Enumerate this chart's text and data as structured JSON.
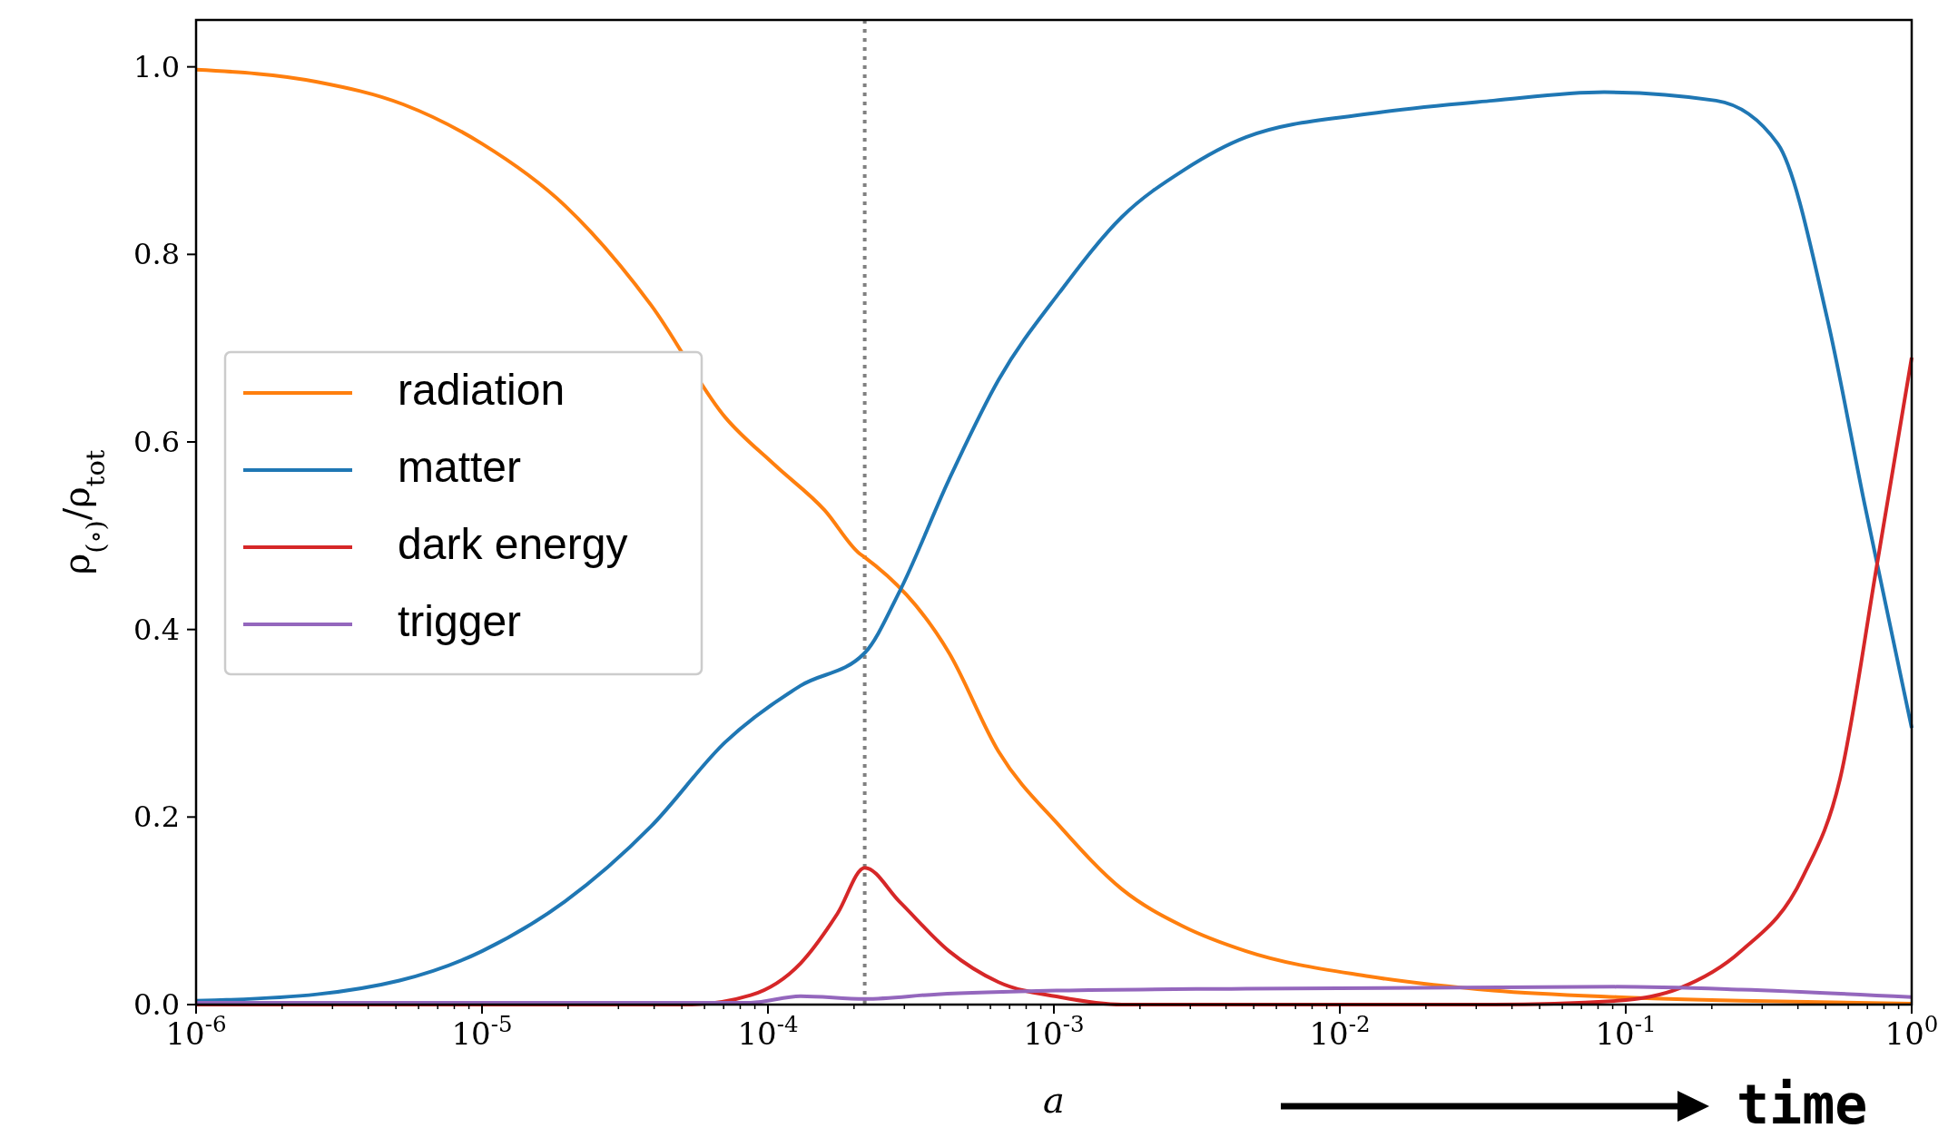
{
  "chart_data": {
    "type": "line",
    "xlabel": "a",
    "ylabel": "ρ$_{(∘)}$/ρ$_{tot}$",
    "log": "x",
    "xlim": [
      1e-06,
      1
    ],
    "ylim": [
      0,
      1.05
    ],
    "xticks": [
      {
        "value": 1e-06,
        "label": "10$^{-6}$"
      },
      {
        "value": 2e-06,
        "label": null
      },
      {
        "value": 3e-06,
        "label": null
      },
      {
        "value": 4e-06,
        "label": null
      },
      {
        "value": 5e-06,
        "label": null
      },
      {
        "value": 6e-06,
        "label": null
      },
      {
        "value": 7e-06,
        "label": null
      },
      {
        "value": 8e-06,
        "label": null
      },
      {
        "value": 9e-06,
        "label": null
      },
      {
        "value": 1e-05,
        "label": "10$^{-5}$"
      },
      {
        "value": 2e-05,
        "label": null
      },
      {
        "value": 3e-05,
        "label": null
      },
      {
        "value": 4e-05,
        "label": null
      },
      {
        "value": 5e-05,
        "label": null
      },
      {
        "value": 6e-05,
        "label": null
      },
      {
        "value": 7e-05,
        "label": null
      },
      {
        "value": 8e-05,
        "label": null
      },
      {
        "value": 9e-05,
        "label": null
      },
      {
        "value": 0.0001,
        "label": "10$^{-4}$"
      },
      {
        "value": 0.0002,
        "label": null
      },
      {
        "value": 0.0003,
        "label": null
      },
      {
        "value": 0.0004,
        "label": null
      },
      {
        "value": 0.0005,
        "label": null
      },
      {
        "value": 0.0006,
        "label": null
      },
      {
        "value": 0.0007,
        "label": null
      },
      {
        "value": 0.0008,
        "label": null
      },
      {
        "value": 0.0009,
        "label": null
      },
      {
        "value": 0.001,
        "label": "10$^{-3}$"
      },
      {
        "value": 0.002,
        "label": null
      },
      {
        "value": 0.003,
        "label": null
      },
      {
        "value": 0.004,
        "label": null
      },
      {
        "value": 0.005,
        "label": null
      },
      {
        "value": 0.006,
        "label": null
      },
      {
        "value": 0.007,
        "label": null
      },
      {
        "value": 0.008,
        "label": null
      },
      {
        "value": 0.009,
        "label": null
      },
      {
        "value": 0.01,
        "label": "10$^{-2}$"
      },
      {
        "value": 0.02,
        "label": null
      },
      {
        "value": 0.03,
        "label": null
      },
      {
        "value": 0.04,
        "label": null
      },
      {
        "value": 0.05,
        "label": null
      },
      {
        "value": 0.06,
        "label": null
      },
      {
        "value": 0.07,
        "label": null
      },
      {
        "value": 0.08,
        "label": null
      },
      {
        "value": 0.09,
        "label": null
      },
      {
        "value": 0.1,
        "label": "10$^{-1}$"
      },
      {
        "value": 0.2,
        "label": null
      },
      {
        "value": 0.3,
        "label": null
      },
      {
        "value": 0.4,
        "label": null
      },
      {
        "value": 0.5,
        "label": null
      },
      {
        "value": 0.6,
        "label": null
      },
      {
        "value": 0.7,
        "label": null
      },
      {
        "value": 0.8,
        "label": null
      },
      {
        "value": 0.9,
        "label": null
      },
      {
        "value": 1,
        "label": "10$^{0}$"
      }
    ],
    "yticks": [
      {
        "value": 0,
        "label": "0.0"
      },
      {
        "value": 0.2,
        "label": "0.2"
      },
      {
        "value": 0.4,
        "label": "0.4"
      },
      {
        "value": 0.6,
        "label": "0.6"
      },
      {
        "value": 0.8,
        "label": "0.8"
      },
      {
        "value": 1,
        "label": "1.0"
      }
    ],
    "series": [
      {
        "name": "radiation",
        "color": "#ff7f0e",
        "x": [
          1e-06,
          2.65e-06,
          5.3e-06,
          1e-05,
          1.95e-05,
          3.9e-05,
          7.1e-05,
          0.000106,
          0.000158,
          0.000209,
          0.000218,
          0.00043,
          0.00064,
          0.00105,
          0.00173,
          0.00285,
          0.0047,
          0.0127,
          0.0344,
          0.093,
          0.253,
          1
        ],
        "values": [
          0.997,
          0.984,
          0.96,
          0.918,
          0.852,
          0.746,
          0.626,
          0.575,
          0.527,
          0.481,
          0.477,
          0.375,
          0.27,
          0.19,
          0.123,
          0.083,
          0.057,
          0.03,
          0.015,
          0.008,
          0.004,
          0.001
        ]
      },
      {
        "name": "matter",
        "color": "#1f77b4",
        "x": [
          1e-06,
          2.65e-06,
          1e-05,
          1.95e-05,
          3.9e-05,
          7.1e-05,
          0.00013,
          0.000218,
          0.000288,
          0.00043,
          0.00064,
          0.00105,
          0.00173,
          0.00285,
          0.0047,
          0.0127,
          0.0344,
          0.084,
          0.207,
          0.34,
          0.508,
          0.684,
          1
        ],
        "values": [
          0.004,
          0.011,
          0.057,
          0.11,
          0.19,
          0.28,
          0.34,
          0.375,
          0.44,
          0.56,
          0.666,
          0.76,
          0.84,
          0.89,
          0.925,
          0.95,
          0.964,
          0.973,
          0.964,
          0.918,
          0.73,
          0.534,
          0.295
        ]
      },
      {
        "name": "dark energy",
        "color": "#d62728",
        "x": [
          1e-06,
          5.3e-05,
          8.7e-05,
          0.00013,
          0.000175,
          0.000218,
          0.000288,
          0.00043,
          0.00064,
          0.00105,
          0.00173,
          0.0344,
          0.093,
          0.153,
          0.253,
          0.416,
          0.561,
          0.757,
          1
        ],
        "values": [
          0,
          0,
          0.01,
          0.044,
          0.097,
          0.146,
          0.11,
          0.057,
          0.024,
          0.008,
          0,
          0,
          0.004,
          0.017,
          0.057,
          0.136,
          0.24,
          0.47,
          0.69
        ]
      },
      {
        "name": "trigger",
        "color": "#9467bd",
        "x": [
          1e-06,
          8.7e-05,
          0.00013,
          0.000218,
          0.00039,
          0.00105,
          0.0047,
          0.093,
          0.253,
          1
        ],
        "values": [
          0.002,
          0.002,
          0.009,
          0.006,
          0.011,
          0.015,
          0.017,
          0.019,
          0.016,
          0.008
        ]
      }
    ],
    "ref_lines": [
      {
        "axis": "x",
        "value": 0.000218,
        "color": "#808080",
        "line_style": "dotted"
      }
    ],
    "legend": "left",
    "grid": false,
    "line_style": "solid",
    "marker": "none",
    "annotations": [
      "time"
    ]
  }
}
